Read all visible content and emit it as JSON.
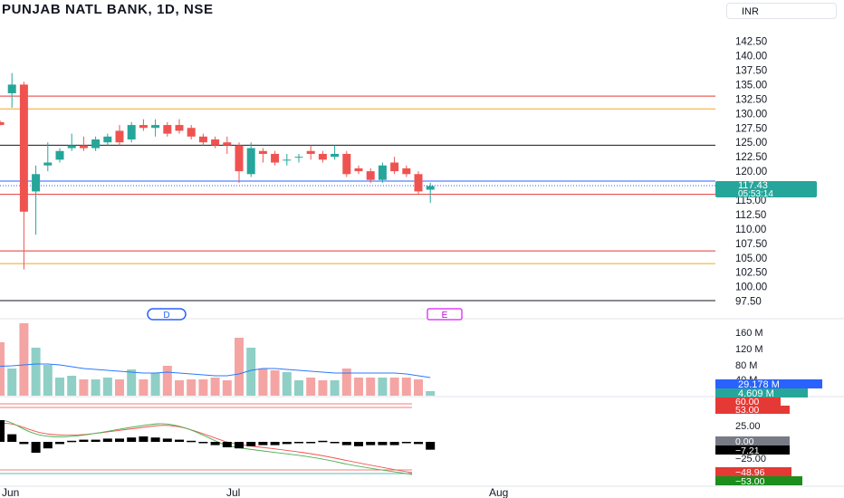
{
  "header": {
    "symbol_title": "PUNJAB NATL BANK, 1D, NSE",
    "currency_label": "INR"
  },
  "colors": {
    "up": "#26a69a",
    "down": "#ef5350",
    "red_line": "#e53935",
    "orange_line": "#f5a623",
    "black_line": "#131722",
    "blue_line": "#2962ff",
    "ma_line": "#2979ff",
    "volume_up": "#8fcfc6",
    "volume_down": "#f4a5a3"
  },
  "price_axis": {
    "ticks": [
      "142.50",
      "140.00",
      "137.50",
      "135.00",
      "132.50",
      "130.00",
      "127.50",
      "125.00",
      "122.50",
      "120.00",
      "115.00",
      "112.50",
      "110.00",
      "107.50",
      "105.00",
      "102.50",
      "100.00",
      "97.50"
    ],
    "last_price": "117.43",
    "countdown": "05:53:14"
  },
  "volume_axis": {
    "ticks": [
      "160 M",
      "120 M",
      "80 M",
      "40 M"
    ],
    "badge_blue": "29.178 M",
    "badge_green": "4.609 M"
  },
  "indicator_axis": {
    "badge_red_1": "60.00",
    "badge_red_2": "53.00",
    "tick_25": "25.00",
    "badge_gray": "0.00",
    "badge_black": "−7.21",
    "tick_minus25": "−25.00",
    "badge_red_3": "−48.96",
    "badge_green_3": "−53.00"
  },
  "time_axis": [
    "Jun",
    "Jul",
    "Aug"
  ],
  "markers": {
    "dividend": "D",
    "earnings": "E"
  },
  "chart_data": {
    "type": "candlestick",
    "title": "PUNJAB NATL BANK, 1D, NSE",
    "y_range": [
      96.5,
      144
    ],
    "horizontal_lines": [
      {
        "price": 133.0,
        "color": "red"
      },
      {
        "price": 130.8,
        "color": "orange"
      },
      {
        "price": 124.5,
        "color": "black"
      },
      {
        "price": 118.3,
        "color": "blue"
      },
      {
        "price": 116.0,
        "color": "red"
      },
      {
        "price": 106.2,
        "color": "red"
      },
      {
        "price": 104.0,
        "color": "orange"
      },
      {
        "price": 97.6,
        "color": "black"
      }
    ],
    "candles": [
      {
        "o": 128.5,
        "h": 128.8,
        "l": 128.0,
        "c": 128.0
      },
      {
        "o": 133.5,
        "h": 137.0,
        "l": 131.0,
        "c": 135.0
      },
      {
        "o": 135.0,
        "h": 135.5,
        "l": 103.0,
        "c": 113.0
      },
      {
        "o": 116.5,
        "h": 121.0,
        "l": 109.0,
        "c": 119.5
      },
      {
        "o": 121.0,
        "h": 125.0,
        "l": 120.0,
        "c": 121.5
      },
      {
        "o": 122.0,
        "h": 124.0,
        "l": 121.5,
        "c": 123.5
      },
      {
        "o": 124.0,
        "h": 126.5,
        "l": 123.5,
        "c": 124.5
      },
      {
        "o": 124.5,
        "h": 126.0,
        "l": 123.5,
        "c": 124.0
      },
      {
        "o": 124.0,
        "h": 126.0,
        "l": 123.5,
        "c": 125.5
      },
      {
        "o": 125.0,
        "h": 126.5,
        "l": 124.5,
        "c": 126.0
      },
      {
        "o": 127.0,
        "h": 128.0,
        "l": 124.5,
        "c": 125.0
      },
      {
        "o": 125.5,
        "h": 128.5,
        "l": 125.0,
        "c": 128.0
      },
      {
        "o": 128.0,
        "h": 129.0,
        "l": 127.0,
        "c": 127.5
      },
      {
        "o": 127.5,
        "h": 129.0,
        "l": 126.0,
        "c": 128.0
      },
      {
        "o": 128.0,
        "h": 128.5,
        "l": 126.0,
        "c": 126.5
      },
      {
        "o": 128.0,
        "h": 129.0,
        "l": 126.5,
        "c": 127.0
      },
      {
        "o": 127.5,
        "h": 128.0,
        "l": 125.5,
        "c": 126.0
      },
      {
        "o": 126.0,
        "h": 126.5,
        "l": 124.5,
        "c": 125.0
      },
      {
        "o": 125.5,
        "h": 126.0,
        "l": 124.0,
        "c": 124.5
      },
      {
        "o": 125.0,
        "h": 126.0,
        "l": 123.0,
        "c": 124.5
      },
      {
        "o": 124.5,
        "h": 125.0,
        "l": 118.0,
        "c": 120.0
      },
      {
        "o": 119.5,
        "h": 125.0,
        "l": 119.0,
        "c": 124.0
      },
      {
        "o": 123.5,
        "h": 124.0,
        "l": 121.5,
        "c": 123.0
      },
      {
        "o": 123.0,
        "h": 123.5,
        "l": 121.0,
        "c": 121.5
      },
      {
        "o": 122.0,
        "h": 123.0,
        "l": 121.0,
        "c": 122.0
      },
      {
        "o": 122.5,
        "h": 123.0,
        "l": 121.5,
        "c": 122.5
      },
      {
        "o": 123.5,
        "h": 124.5,
        "l": 122.0,
        "c": 123.0
      },
      {
        "o": 123.0,
        "h": 123.5,
        "l": 121.5,
        "c": 122.0
      },
      {
        "o": 122.5,
        "h": 124.5,
        "l": 122.0,
        "c": 123.0
      },
      {
        "o": 123.0,
        "h": 123.5,
        "l": 119.0,
        "c": 119.5
      },
      {
        "o": 120.5,
        "h": 121.0,
        "l": 119.5,
        "c": 120.0
      },
      {
        "o": 120.0,
        "h": 120.5,
        "l": 118.0,
        "c": 118.5
      },
      {
        "o": 118.5,
        "h": 121.5,
        "l": 118.0,
        "c": 121.0
      },
      {
        "o": 121.5,
        "h": 122.5,
        "l": 119.5,
        "c": 120.0
      },
      {
        "o": 120.5,
        "h": 121.0,
        "l": 119.0,
        "c": 119.5
      },
      {
        "o": 119.5,
        "h": 120.0,
        "l": 116.0,
        "c": 116.5
      },
      {
        "o": 116.8,
        "h": 118.0,
        "l": 114.5,
        "c": 117.43
      }
    ],
    "volumes_m": [
      118,
      60,
      160,
      106,
      68,
      40,
      44,
      36,
      36,
      40,
      36,
      58,
      36,
      50,
      66,
      34,
      36,
      36,
      40,
      34,
      128,
      106,
      60,
      56,
      52,
      34,
      40,
      34,
      34,
      60,
      40,
      40,
      40,
      40,
      40,
      36,
      10
    ],
    "volume_ma_m": [
      65,
      66,
      68,
      70,
      70,
      68,
      64,
      60,
      58,
      56,
      54,
      52,
      50,
      50,
      52,
      50,
      48,
      46,
      44,
      44,
      48,
      56,
      60,
      60,
      58,
      56,
      54,
      52,
      50,
      50,
      50,
      50,
      50,
      50,
      48,
      44,
      40
    ],
    "indicator_hist": [
      20,
      7,
      -2,
      -10,
      -6,
      -2,
      1,
      2,
      2,
      3,
      3,
      4,
      5,
      4,
      3,
      2,
      1,
      -1,
      -3,
      -5,
      -6,
      -4,
      -3,
      -3,
      -2,
      -1,
      0,
      1,
      -1,
      -3,
      -4,
      -3,
      -3,
      -3,
      -1,
      -2,
      -7.21
    ]
  }
}
